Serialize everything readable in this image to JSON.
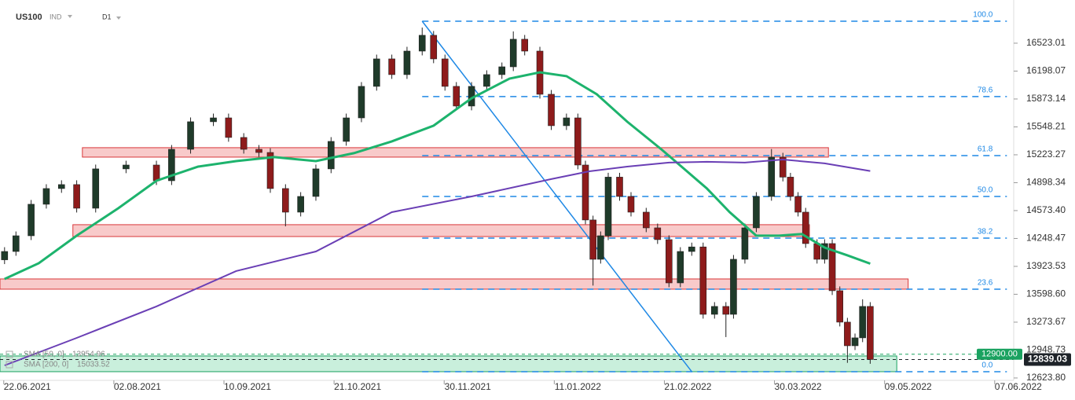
{
  "chart_data": {
    "type": "candlestick",
    "symbol": "US100",
    "market": "IND",
    "timeframe": "D1",
    "up_color": "#1f3b2a",
    "down_color": "#8e1b1b",
    "x": [
      -6,
      -3,
      1,
      5,
      9,
      13,
      18,
      26,
      34,
      38,
      43,
      49,
      53,
      57,
      61,
      64,
      68,
      72,
      76,
      80,
      84,
      88,
      92,
      96,
      100,
      104,
      107,
      110,
      113,
      117,
      121,
      125,
      128,
      131,
      135,
      138,
      142,
      145,
      147,
      149,
      151,
      153,
      156,
      159,
      163,
      166,
      169,
      172,
      175,
      178,
      181,
      184,
      186,
      189,
      192,
      196,
      199,
      201,
      203,
      205,
      208,
      210,
      212,
      214,
      216,
      218,
      220,
      222
    ],
    "open": [
      14000,
      14097,
      14280,
      14647,
      14830,
      14876,
      14601,
      15059,
      15104,
      14921,
      15287,
      15608,
      15653,
      15425,
      15287,
      15250,
      14830,
      14555,
      14738,
      15059,
      15379,
      15653,
      16020,
      16340,
      16157,
      16431,
      16615,
      16340,
      16020,
      15791,
      16020,
      16157,
      16248,
      16569,
      16431,
      15928,
      15562,
      15653,
      15104,
      14464,
      14006,
      14280,
      14963,
      14738,
      14555,
      14372,
      14235,
      13731,
      14097,
      14150,
      13365,
      13457,
      13365,
      14006,
      14372,
      14738,
      15196,
      14963,
      14738,
      14555,
      14189,
      14006,
      14189,
      13640,
      13274,
      12999,
      13091,
      13457
    ],
    "high": [
      14147,
      14330,
      14697,
      14880,
      14926,
      14926,
      15109,
      15154,
      15154,
      15337,
      15658,
      15703,
      15703,
      15475,
      15337,
      15300,
      14880,
      14788,
      15109,
      15429,
      15703,
      16070,
      16390,
      16390,
      16481,
      16705,
      16665,
      16390,
      16070,
      16070,
      16207,
      16298,
      16660,
      16619,
      16481,
      15978,
      15703,
      15703,
      15154,
      14514,
      14330,
      15013,
      15013,
      14788,
      14605,
      14422,
      14285,
      14147,
      14200,
      14200,
      13507,
      13507,
      14056,
      14422,
      14788,
      15290,
      15246,
      15013,
      14788,
      14605,
      14239,
      14239,
      14239,
      13690,
      13324,
      13141,
      13540,
      13507
    ],
    "low": [
      13950,
      14047,
      14230,
      14597,
      14780,
      14551,
      14551,
      15009,
      14871,
      14871,
      15237,
      15558,
      15375,
      15237,
      15200,
      14780,
      14390,
      14505,
      14688,
      15009,
      15329,
      15603,
      15970,
      16107,
      16107,
      16381,
      16290,
      15970,
      15741,
      15741,
      15970,
      16107,
      16198,
      16381,
      15878,
      15512,
      15512,
      15054,
      14414,
      13700,
      13956,
      14230,
      14688,
      14505,
      14322,
      14185,
      13681,
      13681,
      14047,
      13315,
      13315,
      13100,
      13315,
      13956,
      14322,
      14688,
      14913,
      14688,
      14505,
      14139,
      13956,
      13956,
      13590,
      13224,
      12800,
      12949,
      13041,
      12789
    ],
    "close": [
      14097,
      14280,
      14647,
      14830,
      14876,
      14601,
      15059,
      15104,
      14921,
      15287,
      15608,
      15653,
      15425,
      15287,
      15250,
      14830,
      14555,
      14738,
      15059,
      15379,
      15653,
      16020,
      16340,
      16157,
      16431,
      16615,
      16340,
      16020,
      15791,
      16020,
      16157,
      16248,
      16569,
      16431,
      15928,
      15562,
      15653,
      15104,
      14464,
      14006,
      14280,
      14963,
      14738,
      14555,
      14372,
      14235,
      13731,
      14097,
      14150,
      13365,
      13457,
      13365,
      14006,
      14372,
      14738,
      15196,
      14963,
      14738,
      14555,
      14189,
      14006,
      14189,
      13640,
      13274,
      12999,
      13091,
      13457,
      12839
    ],
    "series": [
      {
        "name": "SMA [50, 0]",
        "color": "#1db36d",
        "last": 13954.96,
        "x": [
          -6,
          3,
          13,
          24,
          34,
          45,
          55,
          65,
          76,
          86,
          96,
          107,
          117,
          127,
          135,
          142,
          150,
          158,
          167,
          173,
          179,
          185,
          192,
          198,
          204,
          210,
          216,
          222
        ],
        "values": [
          13777,
          13960,
          14281,
          14601,
          14921,
          15086,
          15150,
          15196,
          15150,
          15242,
          15379,
          15562,
          15882,
          16111,
          16184,
          16139,
          15928,
          15608,
          15287,
          15059,
          14830,
          14555,
          14281,
          14281,
          14300,
          14143,
          14052,
          13955
        ]
      },
      {
        "name": "SMA [200, 0]",
        "color": "#6a3fb5",
        "last": 15033.52,
        "x": [
          -6,
          13,
          34,
          55,
          76,
          96,
          117,
          138,
          148,
          158,
          169,
          179,
          189,
          199,
          210,
          222
        ],
        "values": [
          12770,
          13090,
          13457,
          13869,
          14097,
          14555,
          14738,
          14940,
          15031,
          15086,
          15132,
          15141,
          15132,
          15168,
          15123,
          15034
        ]
      }
    ],
    "zones": [
      {
        "x": [
          14.5,
          211
        ],
        "y": [
          15196,
          15306
        ],
        "color": "#f8caca",
        "border": "#d9383a"
      },
      {
        "x": [
          12,
          206
        ],
        "y": [
          14271,
          14409
        ],
        "color": "#f8caca",
        "border": "#d9383a"
      },
      {
        "x": [
          -7.2,
          232
        ],
        "y": [
          13658,
          13777
        ],
        "color": "#f8caca",
        "border": "#d9383a"
      },
      {
        "x": [
          -7.2,
          229
        ],
        "y": [
          12697,
          12880
        ],
        "color": "#c9efdc",
        "border": "#1aa260"
      }
    ],
    "fibonacci": {
      "color": "#1e88e5",
      "x": [
        104,
        258
      ],
      "levels": [
        {
          "value": 16779,
          "label": "100.0"
        },
        {
          "value": 15901,
          "label": "78.6"
        },
        {
          "value": 15214,
          "label": "61.8"
        },
        {
          "value": 14738,
          "label": "50.0"
        },
        {
          "value": 14253,
          "label": "38.2"
        },
        {
          "value": 13658,
          "label": "23.6"
        },
        {
          "value": 12697,
          "label": "0.0"
        }
      ]
    },
    "trendline": {
      "color": "#1e88e5",
      "x": [
        104,
        175
      ],
      "values": [
        16779,
        12697
      ]
    },
    "price_lines": [
      {
        "value": 12900,
        "label": "12900.00",
        "color": "#1aa260"
      },
      {
        "value": 12839.03,
        "color": "#1e2329"
      }
    ],
    "xlim": [
      -7.2,
      259.8
    ],
    "xticks": [
      {
        "value": 0,
        "label": "22.06.2021"
      },
      {
        "value": 29,
        "label": "02.08.2021"
      },
      {
        "value": 58,
        "label": "10.09.2021"
      },
      {
        "value": 87,
        "label": "21.10.2021"
      },
      {
        "value": 116,
        "label": "30.11.2021"
      },
      {
        "value": 145,
        "label": "11.01.2022"
      },
      {
        "value": 174,
        "label": "21.02.2022"
      },
      {
        "value": 203,
        "label": "30.03.2022"
      },
      {
        "value": 232,
        "label": "09.05.2022"
      },
      {
        "value": 261,
        "label": "07.06.2022"
      }
    ],
    "ylim": [
      12541,
      17026
    ],
    "yticks": [
      16523.01,
      16198.07,
      15873.14,
      15548.21,
      15223.27,
      14898.34,
      {
        "value": 14573.4,
        "label": "14573.40"
      },
      14248.47,
      13923.53,
      {
        "value": 13598.6,
        "label": "13598.60"
      },
      13273.67,
      12948.73,
      {
        "value": 12623.8,
        "label": "12623.80"
      }
    ]
  }
}
